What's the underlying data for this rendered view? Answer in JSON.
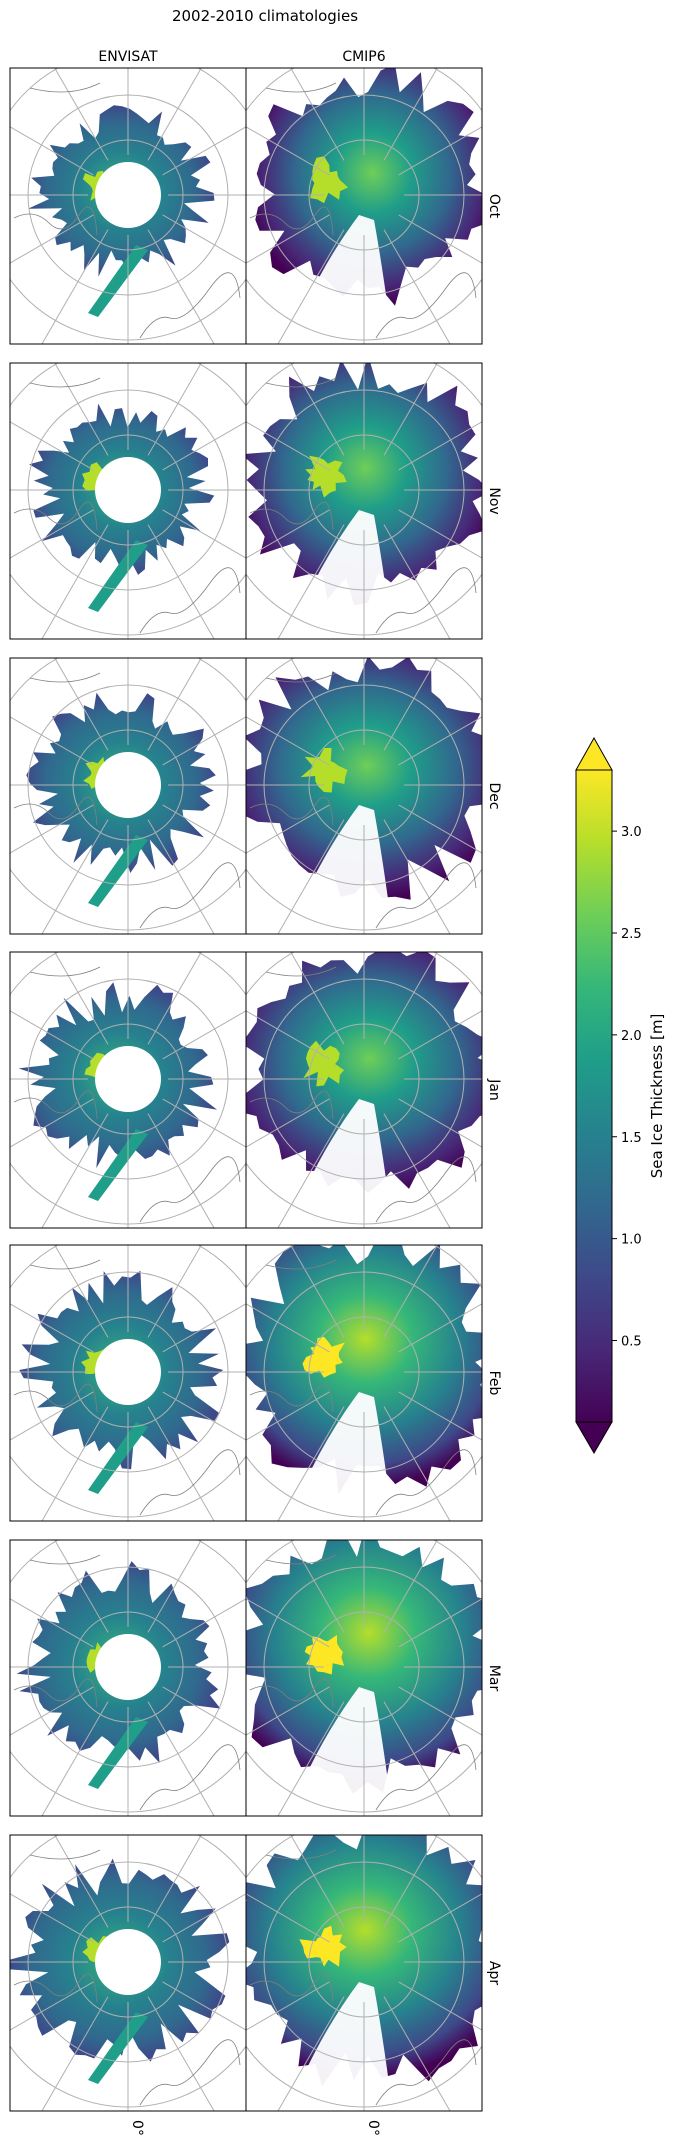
{
  "figure": {
    "title": "2002-2010 climatologies",
    "columns": [
      "ENVISAT",
      "CMIP6"
    ],
    "rows": [
      "Oct",
      "Nov",
      "Dec",
      "Jan",
      "Feb",
      "Mar",
      "Apr"
    ],
    "bottom_tick_labels": [
      "0°",
      "0°"
    ]
  },
  "colorbar": {
    "label": "Sea Ice Thickness [m]",
    "ticks": [
      "0.5",
      "1.0",
      "1.5",
      "2.0",
      "2.5",
      "3.0"
    ],
    "tick_values": [
      0.5,
      1.0,
      1.5,
      2.0,
      2.5,
      3.0
    ],
    "range": [
      0.1,
      3.3
    ],
    "colormap": "viridis",
    "extend": "both"
  },
  "colors": {
    "viridis": [
      "#440154",
      "#482878",
      "#3e4989",
      "#31688e",
      "#26828e",
      "#1f9e89",
      "#35b779",
      "#6ece58",
      "#b5de2b",
      "#fde725"
    ],
    "land_outline": "#808080",
    "gridlines": "#b0b0b0",
    "ocean": "#ffffff"
  }
}
